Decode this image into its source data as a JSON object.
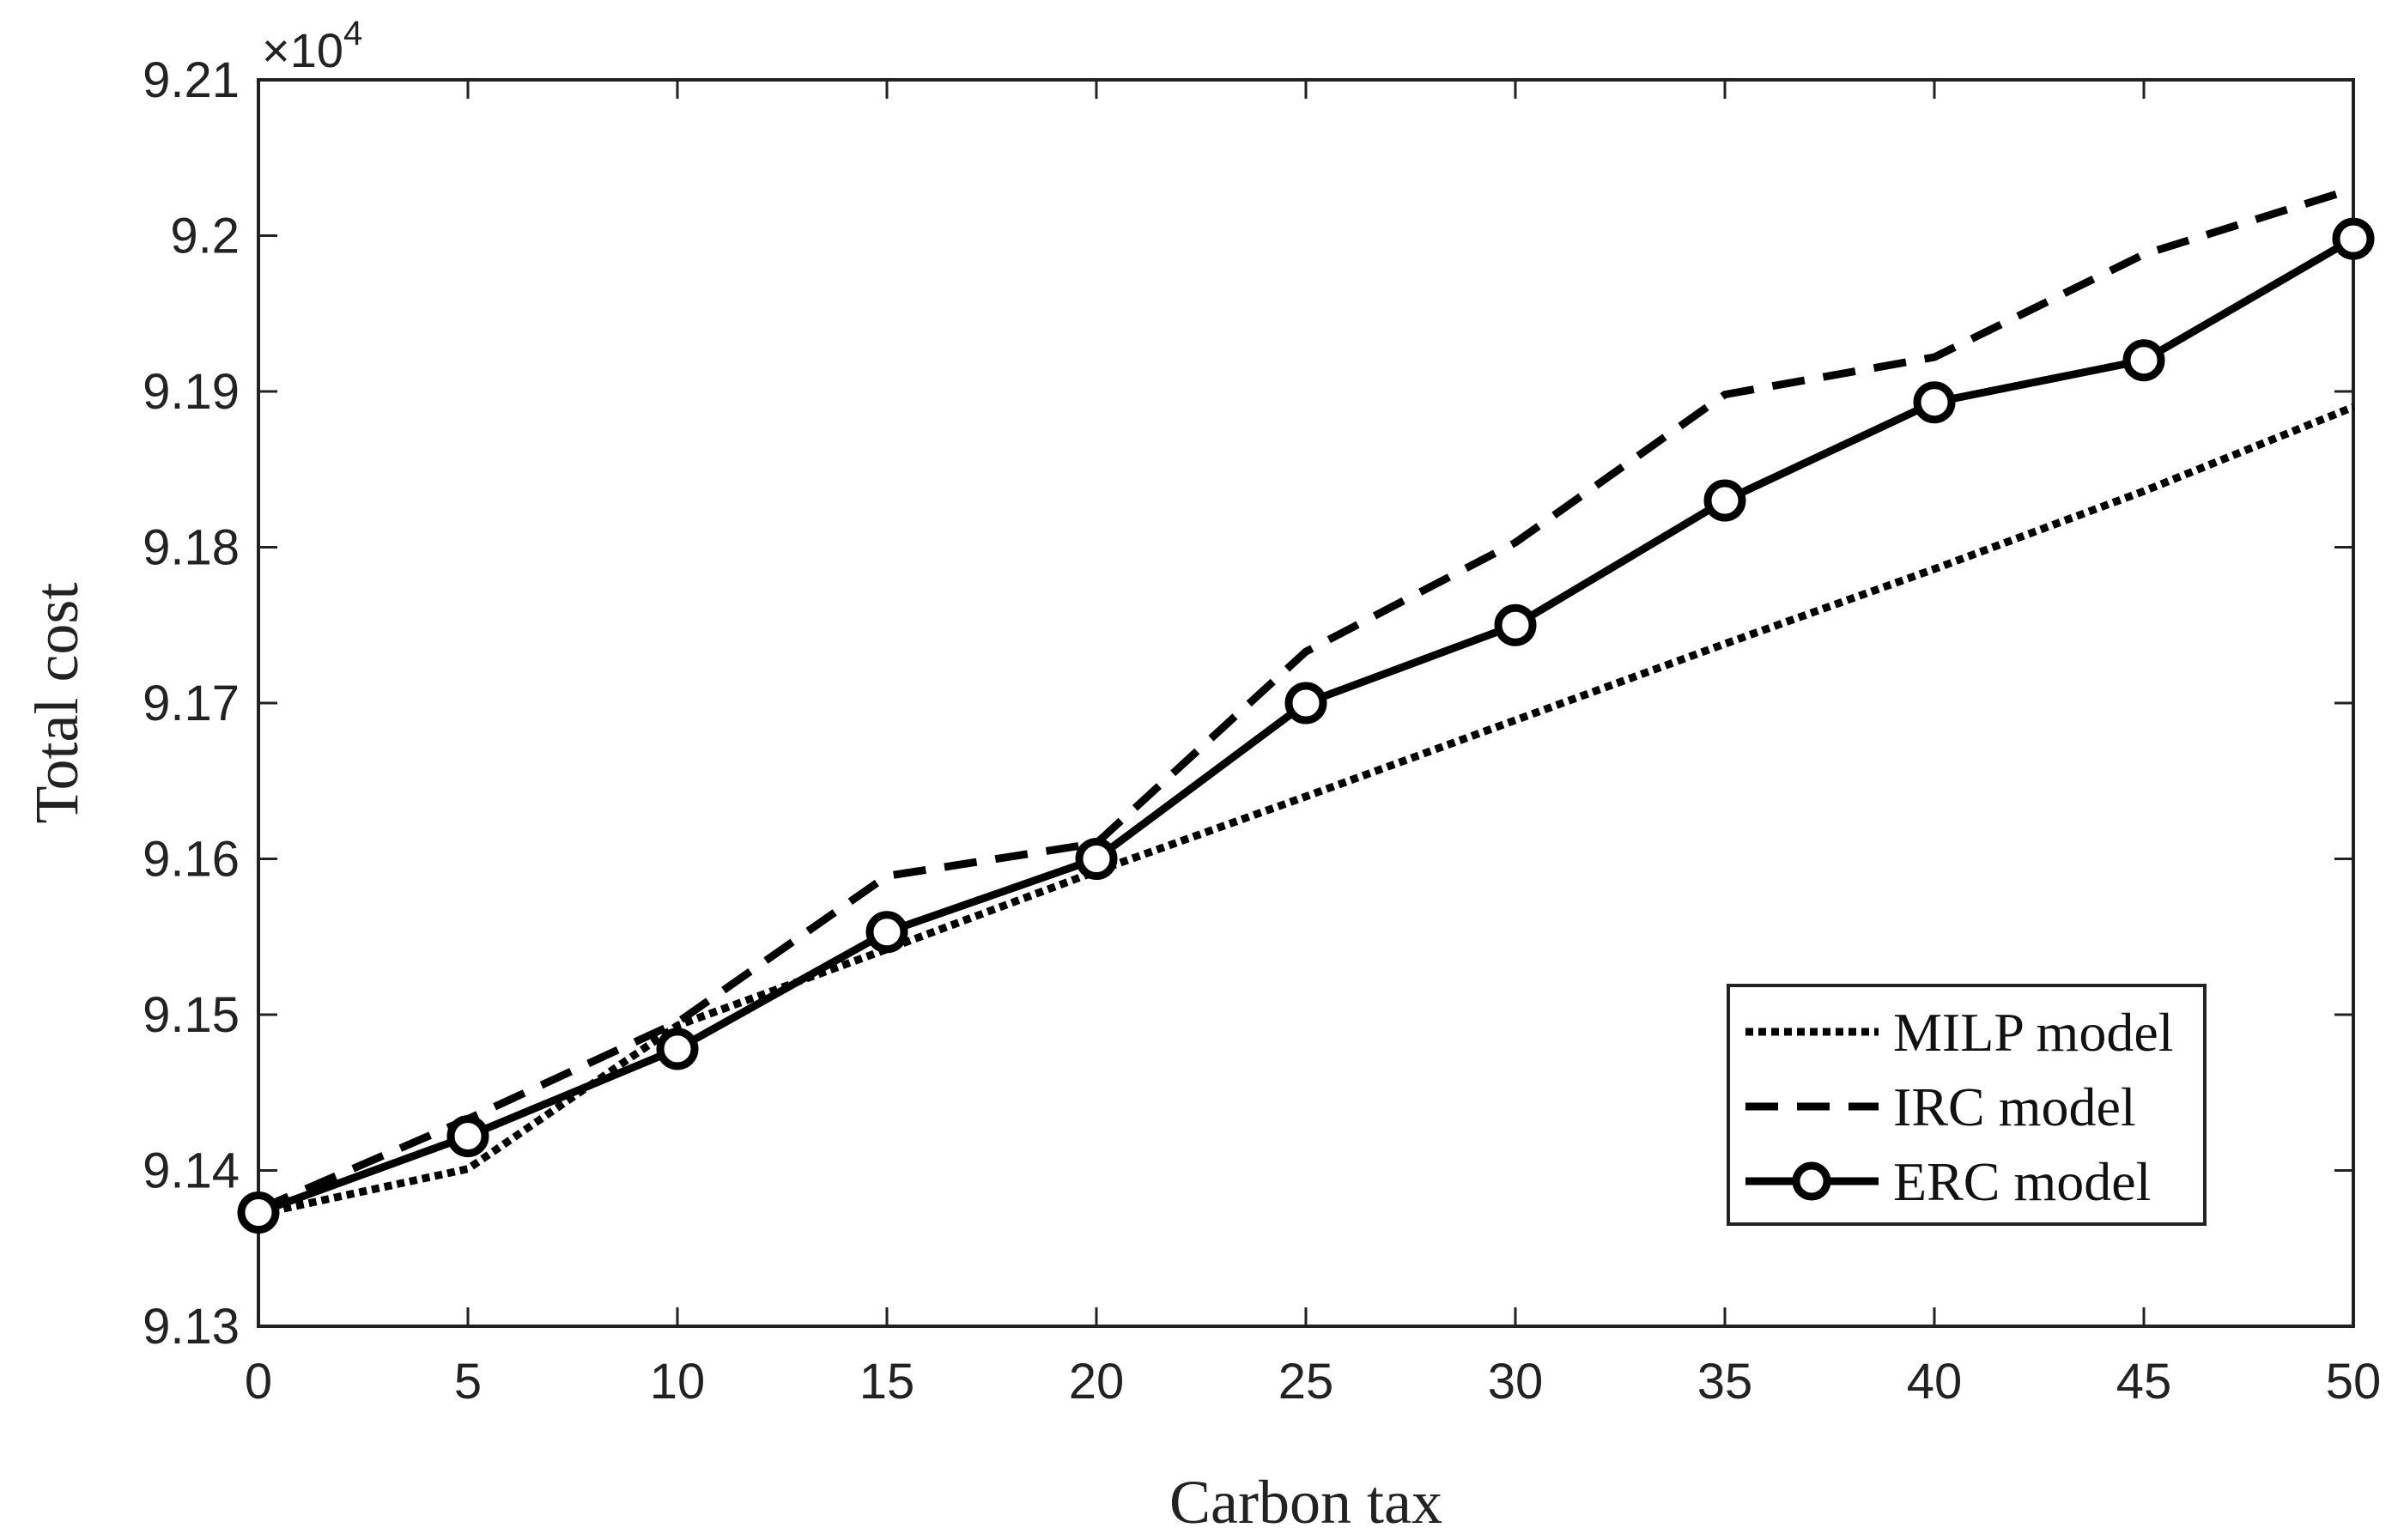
{
  "chart_data": {
    "type": "line",
    "title": "",
    "xlabel": "Carbon tax",
    "ylabel": "Total cost",
    "x": [
      0,
      5,
      10,
      15,
      20,
      25,
      30,
      35,
      40,
      45,
      50
    ],
    "xlim": [
      0,
      50
    ],
    "ylim": [
      91300,
      92100
    ],
    "x_ticks": [
      0,
      5,
      10,
      15,
      20,
      25,
      30,
      35,
      40,
      45,
      50
    ],
    "x_tick_labels": [
      "0",
      "5",
      "10",
      "15",
      "20",
      "25",
      "30",
      "35",
      "40",
      "45",
      "50"
    ],
    "y_ticks": [
      91300,
      91400,
      91500,
      91600,
      91700,
      91800,
      91900,
      92000,
      92100
    ],
    "y_tick_labels": [
      "9.13",
      "9.14",
      "9.15",
      "9.16",
      "9.17",
      "9.18",
      "9.19",
      "9.2",
      "9.21"
    ],
    "y_multiplier": {
      "base": "×10",
      "exponent": "4"
    },
    "grid": false,
    "legend_position": "bottom-right",
    "series": [
      {
        "name": "MILP model",
        "style": "dotted",
        "marker": "none",
        "values": [
          91372,
          91401,
          91493,
          91542,
          91592,
          91640,
          91689,
          91738,
          91786,
          91836,
          91890
        ]
      },
      {
        "name": "IRC model",
        "style": "dashed",
        "marker": "none",
        "values": [
          91375,
          91433,
          91495,
          91589,
          91610,
          91733,
          91803,
          91898,
          91922,
          91988,
          92030
        ]
      },
      {
        "name": "ERC model",
        "style": "solid",
        "marker": "circle",
        "values": [
          91373,
          91422,
          91478,
          91553,
          91600,
          91700,
          91750,
          91830,
          91893,
          91920,
          91998
        ]
      }
    ]
  }
}
